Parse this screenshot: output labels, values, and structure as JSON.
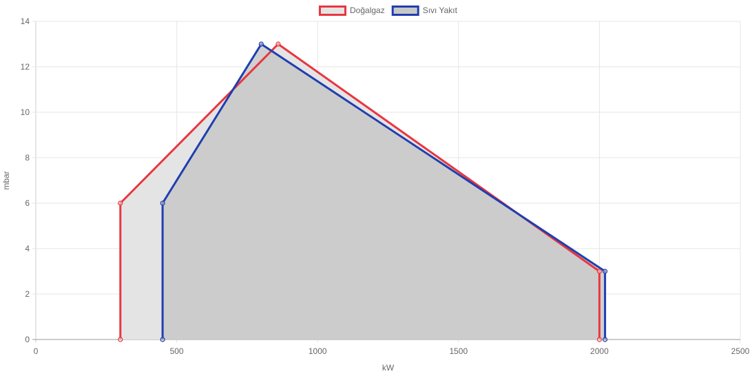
{
  "chart_data": {
    "type": "area",
    "xlabel": "kW",
    "ylabel": "mbar",
    "xlim": [
      0,
      2500
    ],
    "ylim": [
      0,
      14
    ],
    "xticks": [
      0,
      500,
      1000,
      1500,
      2000,
      2500
    ],
    "yticks": [
      0,
      2,
      4,
      6,
      8,
      10,
      12,
      14
    ],
    "grid": true,
    "legend_position": "top-center",
    "series": [
      {
        "name": "Doğalgaz",
        "color": "#e8363f",
        "fill": "#e4e4e4",
        "points": [
          {
            "x": 300,
            "y": 0
          },
          {
            "x": 300,
            "y": 6
          },
          {
            "x": 860,
            "y": 13
          },
          {
            "x": 2000,
            "y": 3
          },
          {
            "x": 2000,
            "y": 0
          }
        ]
      },
      {
        "name": "Sıvı Yakıt",
        "color": "#1f3eb0",
        "fill": "#c8c8c8",
        "points": [
          {
            "x": 450,
            "y": 0
          },
          {
            "x": 450,
            "y": 6
          },
          {
            "x": 800,
            "y": 13
          },
          {
            "x": 2020,
            "y": 3
          },
          {
            "x": 2020,
            "y": 0
          }
        ]
      }
    ]
  }
}
